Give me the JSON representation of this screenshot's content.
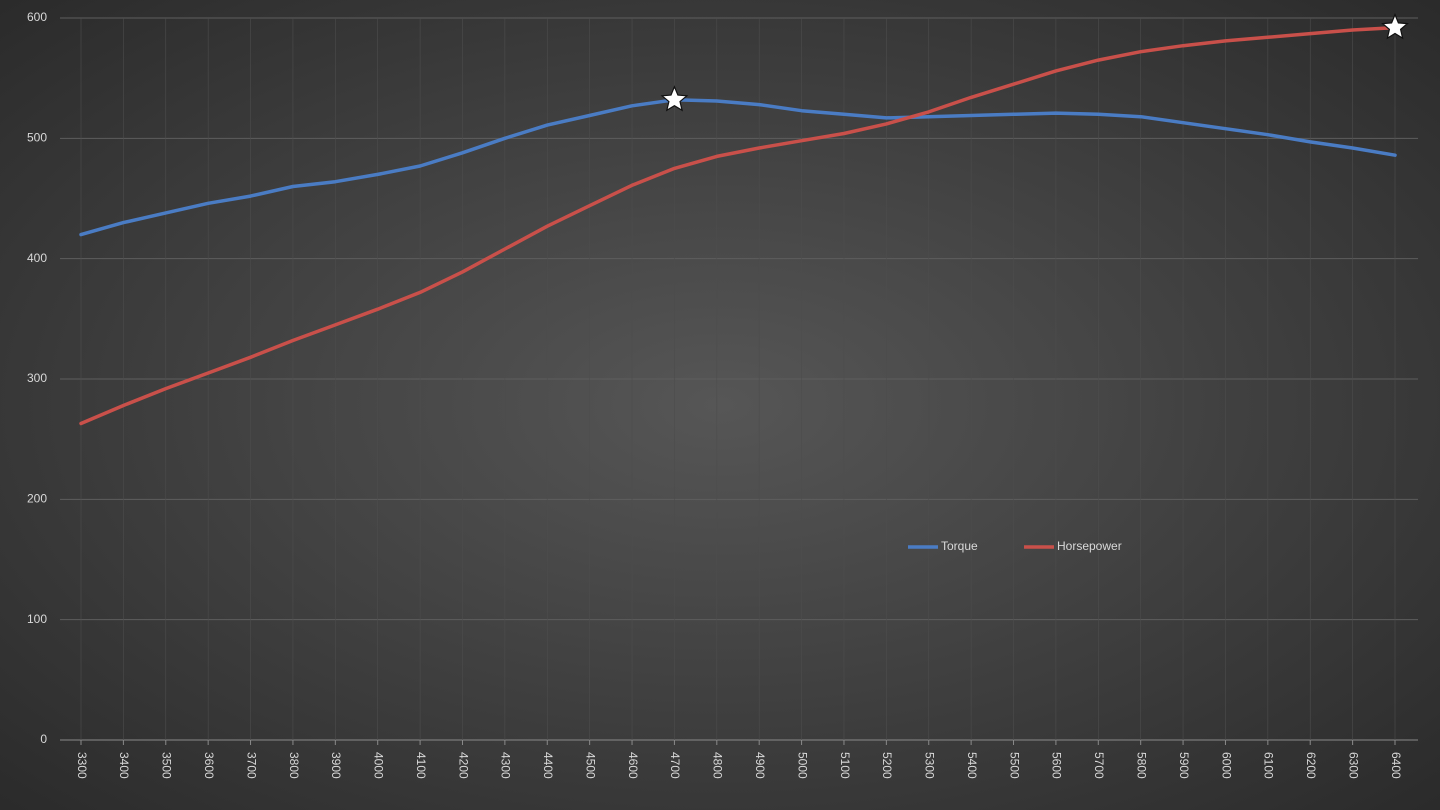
{
  "chart_data": {
    "type": "line",
    "categories": [
      3300,
      3400,
      3500,
      3600,
      3700,
      3800,
      3900,
      4000,
      4100,
      4200,
      4300,
      4400,
      4500,
      4600,
      4700,
      4800,
      4900,
      5000,
      5100,
      5200,
      5300,
      5400,
      5500,
      5600,
      5700,
      5800,
      5900,
      6000,
      6100,
      6200,
      6300,
      6400
    ],
    "series": [
      {
        "name": "Torque",
        "color": "#4a7cc4",
        "values": [
          420,
          430,
          438,
          446,
          452,
          460,
          464,
          470,
          477,
          488,
          500,
          511,
          519,
          527,
          532,
          531,
          528,
          523,
          520,
          517,
          518,
          519,
          520,
          521,
          520,
          518,
          513,
          508,
          503,
          497,
          492,
          486
        ]
      },
      {
        "name": "Horsepower",
        "color": "#c9504a",
        "values": [
          263,
          278,
          292,
          305,
          318,
          332,
          345,
          358,
          372,
          389,
          408,
          427,
          444,
          461,
          475,
          485,
          492,
          498,
          504,
          512,
          522,
          534,
          545,
          556,
          565,
          572,
          577,
          581,
          584,
          587,
          590,
          592
        ]
      }
    ],
    "ylim": [
      0,
      600
    ],
    "yticks": [
      0,
      100,
      200,
      300,
      400,
      500,
      600
    ],
    "grid": true
  }
}
